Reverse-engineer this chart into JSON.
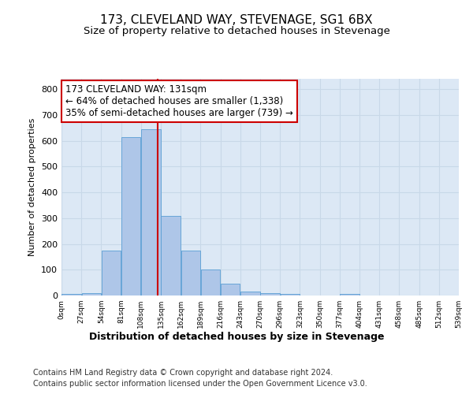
{
  "title": "173, CLEVELAND WAY, STEVENAGE, SG1 6BX",
  "subtitle": "Size of property relative to detached houses in Stevenage",
  "xlabel": "Distribution of detached houses by size in Stevenage",
  "ylabel": "Number of detached properties",
  "bin_edges": [
    0,
    27,
    54,
    81,
    108,
    135,
    162,
    189,
    216,
    243,
    270,
    297,
    324,
    351,
    378,
    405,
    432,
    459,
    486,
    513,
    540
  ],
  "bin_labels": [
    "0sqm",
    "27sqm",
    "54sqm",
    "81sqm",
    "108sqm",
    "135sqm",
    "162sqm",
    "189sqm",
    "216sqm",
    "243sqm",
    "270sqm",
    "296sqm",
    "323sqm",
    "350sqm",
    "377sqm",
    "404sqm",
    "431sqm",
    "458sqm",
    "485sqm",
    "512sqm",
    "539sqm"
  ],
  "bar_heights": [
    5,
    10,
    175,
    615,
    645,
    310,
    175,
    100,
    45,
    15,
    10,
    5,
    0,
    0,
    5,
    0,
    0,
    0,
    0,
    0
  ],
  "bar_color": "#aec6e8",
  "bar_edge_color": "#5a9fd4",
  "grid_color": "#c8d8e8",
  "background_color": "#dce8f5",
  "property_size": 131,
  "vline_color": "#cc0000",
  "annotation_line1": "173 CLEVELAND WAY: 131sqm",
  "annotation_line2": "← 64% of detached houses are smaller (1,338)",
  "annotation_line3": "35% of semi-detached houses are larger (739) →",
  "annotation_box_color": "#ffffff",
  "annotation_border_color": "#cc0000",
  "ylim": [
    0,
    840
  ],
  "yticks": [
    0,
    100,
    200,
    300,
    400,
    500,
    600,
    700,
    800
  ],
  "footer_line1": "Contains HM Land Registry data © Crown copyright and database right 2024.",
  "footer_line2": "Contains public sector information licensed under the Open Government Licence v3.0.",
  "title_fontsize": 11,
  "subtitle_fontsize": 9.5,
  "annotation_fontsize": 8.5,
  "footer_fontsize": 7,
  "ylabel_fontsize": 8,
  "xlabel_fontsize": 9
}
